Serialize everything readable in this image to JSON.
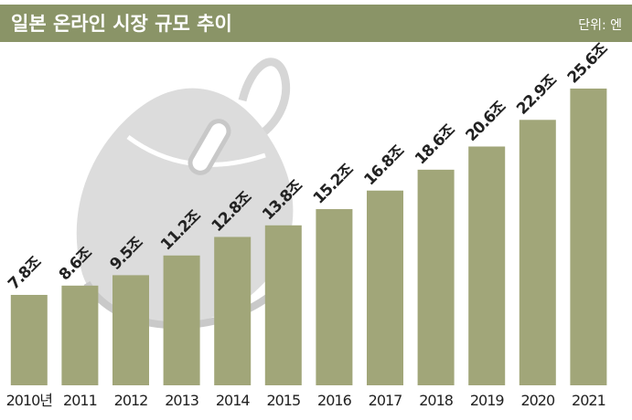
{
  "chart_data": {
    "type": "bar",
    "title": "일본 온라인 시장 규모 추이",
    "unit_label": "단위: 엔",
    "categories": [
      "2010년",
      "2011",
      "2012",
      "2013",
      "2014",
      "2015",
      "2016",
      "2017",
      "2018",
      "2019",
      "2020",
      "2021"
    ],
    "values": [
      7.8,
      8.6,
      9.5,
      11.2,
      12.8,
      13.8,
      15.2,
      16.8,
      18.6,
      20.6,
      22.9,
      25.6
    ],
    "value_labels": [
      "7.8조",
      "8.6조",
      "9.5조",
      "11.2조",
      "12.8조",
      "13.8조",
      "15.2조",
      "16.8조",
      "18.6조",
      "20.6조",
      "22.9조",
      "25.6조"
    ],
    "color": "#a1a679"
  }
}
